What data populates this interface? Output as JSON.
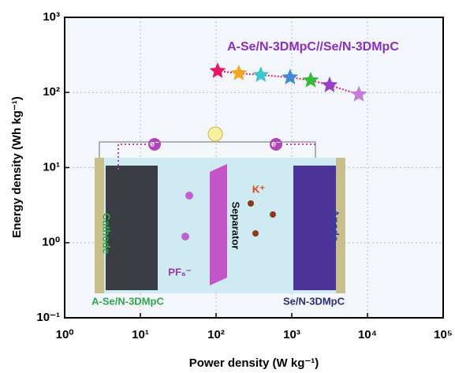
{
  "chart_data": {
    "type": "scatter",
    "xlabel": "Power density (W kg⁻¹)",
    "ylabel": "Energy density (Wh kg⁻¹)",
    "annotation": "A-Se/N-3DMpC//Se/N-3DMpC",
    "x": [
      105,
      200,
      390,
      950,
      1780,
      3160,
      7700
    ],
    "values": [
      193,
      180,
      171,
      159,
      145,
      125,
      94
    ],
    "colors": [
      "#e8175d",
      "#f5a623",
      "#3cc6cf",
      "#3d8ad6",
      "#35bb3a",
      "#9740c8",
      "#c77dd8"
    ],
    "line_color": "#e0245e",
    "xscale": "log",
    "yscale": "log",
    "xlim": [
      1,
      100000
    ],
    "ylim": [
      0.1,
      1000
    ],
    "xticks": [
      {
        "value": 1,
        "label": "10⁰"
      },
      {
        "value": 10,
        "label": "10¹"
      },
      {
        "value": 100,
        "label": "10²"
      },
      {
        "value": 1000,
        "label": "10³"
      },
      {
        "value": 10000,
        "label": "10⁴"
      },
      {
        "value": 100000,
        "label": "10⁵"
      }
    ],
    "yticks": [
      {
        "value": 0.1,
        "label": "10⁻¹"
      },
      {
        "value": 1,
        "label": "10⁰"
      },
      {
        "value": 10,
        "label": "10¹"
      },
      {
        "value": 100,
        "label": "10²"
      },
      {
        "value": 1000,
        "label": "10³"
      }
    ],
    "grid": true,
    "inset_texts": [
      "e⁻",
      "e⁻",
      "K⁺",
      "Separator",
      "Cathode",
      "Anode",
      "PF₆⁻",
      "A-Se/N-3DMpC",
      "Se/N-3DMpC"
    ]
  }
}
